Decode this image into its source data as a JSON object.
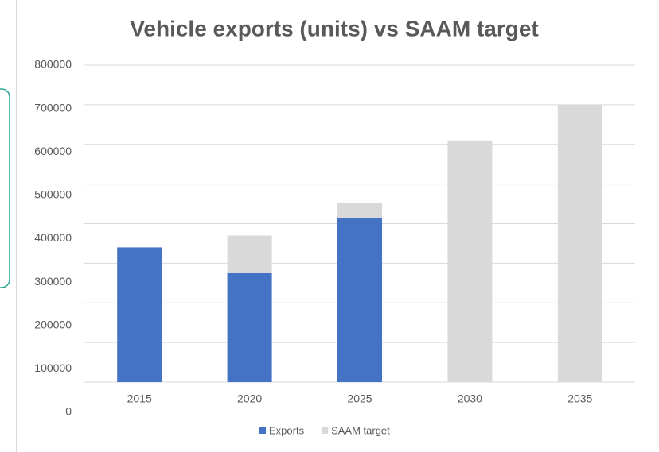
{
  "chart_data": {
    "type": "stacked_bar",
    "title": "Vehicle exports (units) vs SAAM target",
    "categories": [
      "2015",
      "2020",
      "2025",
      "2030",
      "2035"
    ],
    "series": [
      {
        "name": "Exports",
        "color": "#4472c4",
        "values": [
          340000,
          275000,
          413000,
          0,
          0
        ]
      },
      {
        "name": "SAAM target",
        "color": "#d9d9d9",
        "values": [
          0,
          95000,
          40000,
          610000,
          700000
        ]
      }
    ],
    "ylim": [
      0,
      800000
    ],
    "yticks": [
      0,
      100000,
      200000,
      300000,
      400000,
      500000,
      600000,
      700000,
      800000
    ],
    "grid": true,
    "legend": "bottom"
  }
}
